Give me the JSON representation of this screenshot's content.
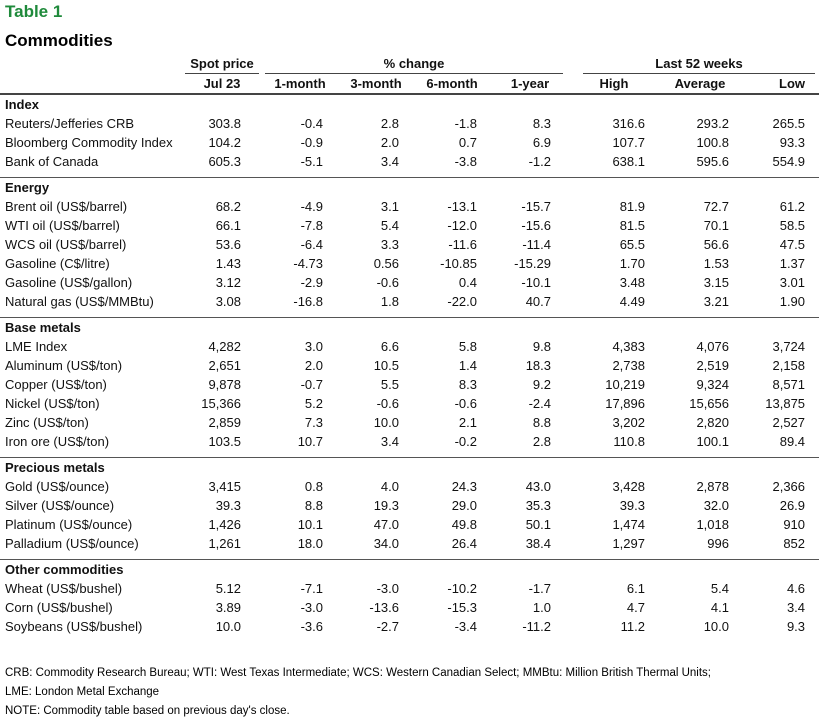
{
  "table_number": "Table 1",
  "table_title": "Commodities",
  "headers": {
    "spot_group": "Spot price",
    "change_group": "% change",
    "weeks_group": "Last 52 weeks",
    "spot_date": "Jul 23",
    "one_month": "1-month",
    "three_month": "3-month",
    "six_month": "6-month",
    "one_year": "1-year",
    "high": "High",
    "average": "Average",
    "low": "Low"
  },
  "sections": [
    {
      "title": "Index",
      "rows": [
        [
          "Reuters/Jefferies CRB",
          "303.8",
          "-0.4",
          "2.8",
          "-1.8",
          "8.3",
          "316.6",
          "293.2",
          "265.5"
        ],
        [
          "Bloomberg Commodity Index",
          "104.2",
          "-0.9",
          "2.0",
          "0.7",
          "6.9",
          "107.7",
          "100.8",
          "93.3"
        ],
        [
          "Bank of Canada",
          "605.3",
          "-5.1",
          "3.4",
          "-3.8",
          "-1.2",
          "638.1",
          "595.6",
          "554.9"
        ]
      ]
    },
    {
      "title": "Energy",
      "rows": [
        [
          "Brent oil (US$/barrel)",
          "68.2",
          "-4.9",
          "3.1",
          "-13.1",
          "-15.7",
          "81.9",
          "72.7",
          "61.2"
        ],
        [
          "WTI oil (US$/barrel)",
          "66.1",
          "-7.8",
          "5.4",
          "-12.0",
          "-15.6",
          "81.5",
          "70.1",
          "58.5"
        ],
        [
          "WCS oil (US$/barrel)",
          "53.6",
          "-6.4",
          "3.3",
          "-11.6",
          "-11.4",
          "65.5",
          "56.6",
          "47.5"
        ],
        [
          "Gasoline (C$/litre)",
          "1.43",
          "-4.73",
          "0.56",
          "-10.85",
          "-15.29",
          "1.70",
          "1.53",
          "1.37"
        ],
        [
          "Gasoline (US$/gallon)",
          "3.12",
          "-2.9",
          "-0.6",
          "0.4",
          "-10.1",
          "3.48",
          "3.15",
          "3.01"
        ],
        [
          "Natural gas (US$/MMBtu)",
          "3.08",
          "-16.8",
          "1.8",
          "-22.0",
          "40.7",
          "4.49",
          "3.21",
          "1.90"
        ]
      ]
    },
    {
      "title": "Base metals",
      "rows": [
        [
          "LME Index",
          "4,282",
          "3.0",
          "6.6",
          "5.8",
          "9.8",
          "4,383",
          "4,076",
          "3,724"
        ],
        [
          "Aluminum (US$/ton)",
          "2,651",
          "2.0",
          "10.5",
          "1.4",
          "18.3",
          "2,738",
          "2,519",
          "2,158"
        ],
        [
          "Copper (US$/ton)",
          "9,878",
          "-0.7",
          "5.5",
          "8.3",
          "9.2",
          "10,219",
          "9,324",
          "8,571"
        ],
        [
          "Nickel (US$/ton)",
          "15,366",
          "5.2",
          "-0.6",
          "-0.6",
          "-2.4",
          "17,896",
          "15,656",
          "13,875"
        ],
        [
          "Zinc (US$/ton)",
          "2,859",
          "7.3",
          "10.0",
          "2.1",
          "8.8",
          "3,202",
          "2,820",
          "2,527"
        ],
        [
          "Iron ore (US$/ton)",
          "103.5",
          "10.7",
          "3.4",
          "-0.2",
          "2.8",
          "110.8",
          "100.1",
          "89.4"
        ]
      ]
    },
    {
      "title": "Precious metals",
      "rows": [
        [
          "Gold (US$/ounce)",
          "3,415",
          "0.8",
          "4.0",
          "24.3",
          "43.0",
          "3,428",
          "2,878",
          "2,366"
        ],
        [
          "Silver (US$/ounce)",
          "39.3",
          "8.8",
          "19.3",
          "29.0",
          "35.3",
          "39.3",
          "32.0",
          "26.9"
        ],
        [
          "Platinum (US$/ounce)",
          "1,426",
          "10.1",
          "47.0",
          "49.8",
          "50.1",
          "1,474",
          "1,018",
          "910"
        ],
        [
          "Palladium (US$/ounce)",
          "1,261",
          "18.0",
          "34.0",
          "26.4",
          "38.4",
          "1,297",
          "996",
          "852"
        ]
      ]
    },
    {
      "title": "Other commodities",
      "rows": [
        [
          "Wheat (US$/bushel)",
          "5.12",
          "-7.1",
          "-3.0",
          "-10.2",
          "-1.7",
          "6.1",
          "5.4",
          "4.6"
        ],
        [
          "Corn (US$/bushel)",
          "3.89",
          "-3.0",
          "-13.6",
          "-15.3",
          "1.0",
          "4.7",
          "4.1",
          "3.4"
        ],
        [
          "Soybeans (US$/bushel)",
          "10.0",
          "-3.6",
          "-2.7",
          "-3.4",
          "-11.2",
          "11.2",
          "10.0",
          "9.3"
        ]
      ]
    }
  ],
  "notes": [
    "CRB: Commodity Research Bureau; WTI: West Texas Intermediate; WCS: Western Canadian Select; MMBtu: Million British Thermal Units;",
    "LME: London Metal Exchange",
    "NOTE: Commodity table based on previous day's close."
  ]
}
